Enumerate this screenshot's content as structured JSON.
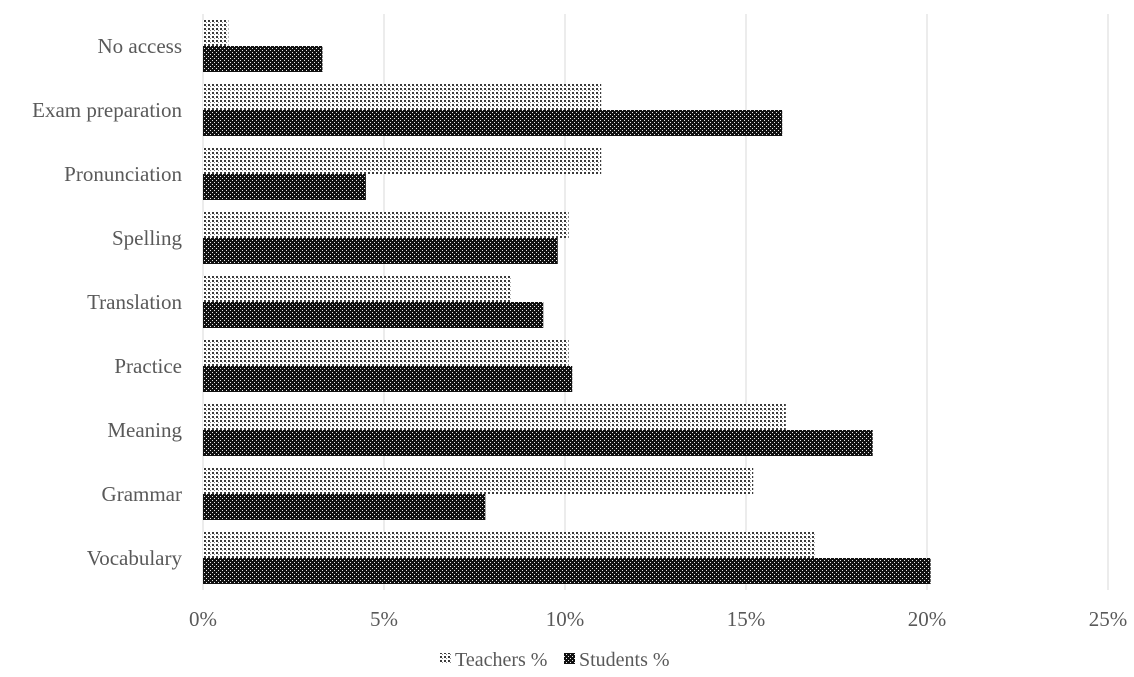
{
  "chart_data": {
    "type": "bar",
    "orientation": "horizontal",
    "categories": [
      "No access",
      "Exam preparation",
      "Pronunciation",
      "Spelling",
      "Translation",
      "Practice",
      "Meaning",
      "Grammar",
      "Vocabulary"
    ],
    "series": [
      {
        "name": "Teachers %",
        "values": [
          0.7,
          11.0,
          11.0,
          10.1,
          8.5,
          10.1,
          16.1,
          15.2,
          16.9
        ],
        "pattern": "light-dots"
      },
      {
        "name": "Students %",
        "values": [
          3.3,
          16.0,
          4.5,
          9.8,
          9.4,
          10.2,
          18.5,
          7.8,
          20.1
        ],
        "pattern": "dark-dots"
      }
    ],
    "xlim": [
      0,
      25
    ],
    "ticks": [
      "0%",
      "5%",
      "10%",
      "15%",
      "20%",
      "25%"
    ],
    "tick_values": [
      0,
      5,
      10,
      15,
      20,
      25
    ],
    "grid": true,
    "legend_position": "bottom",
    "title": "",
    "xlabel": "",
    "ylabel": ""
  }
}
